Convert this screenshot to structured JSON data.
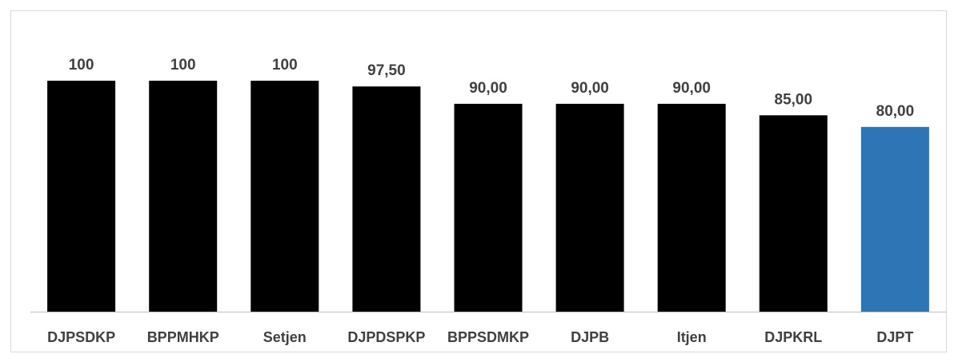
{
  "chart_data": {
    "type": "bar",
    "title": "",
    "xlabel": "",
    "ylabel": "",
    "categories": [
      "DJPSDKP",
      "BPPMHKP",
      "Setjen",
      "DJPDSPKP",
      "BPPSDMKP",
      "DJPB",
      "Itjen",
      "DJPKRL",
      "DJPT"
    ],
    "values": [
      100,
      100,
      100,
      97.5,
      90,
      90,
      90,
      85,
      80
    ],
    "value_labels": [
      "100",
      "100",
      "100",
      "97,50",
      "90,00",
      "90,00",
      "90,00",
      "85,00",
      "80,00"
    ],
    "ylim": [
      0,
      100
    ],
    "grid": false,
    "legend": "none",
    "colors": {
      "default_bar": "#000000",
      "highlight_bar": "#2e75b6",
      "axis_line": "#bfbfbf",
      "label_text": "#404040"
    },
    "highlight_category": "DJPT"
  }
}
